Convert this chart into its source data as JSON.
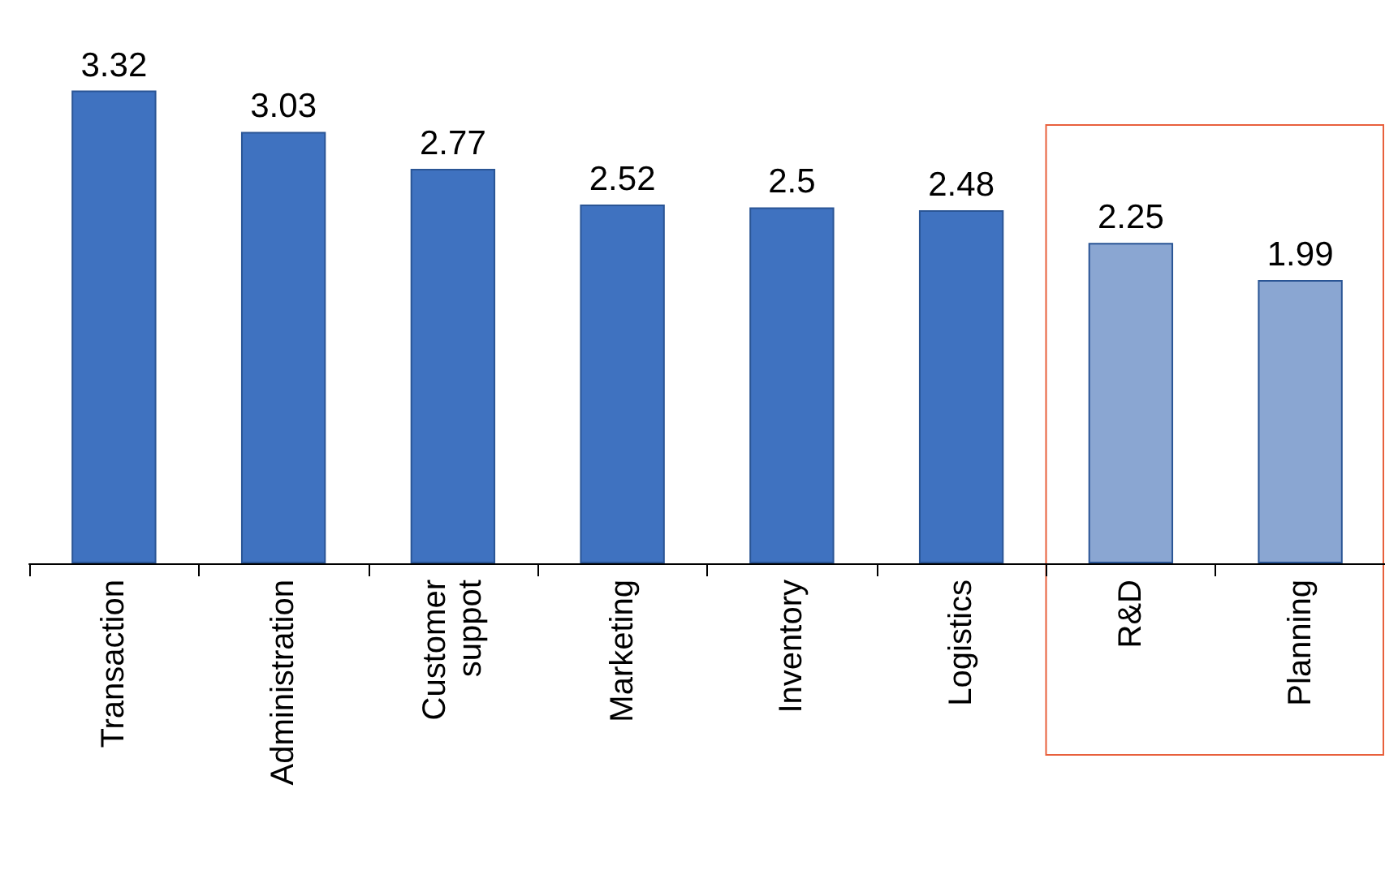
{
  "chart_data": {
    "type": "bar",
    "categories": [
      "Transaction",
      "Administration",
      "Customer\nsuppot",
      "Marketing",
      "Inventory",
      "Logistics",
      "R&D",
      "Planning"
    ],
    "values": [
      3.32,
      3.03,
      2.77,
      2.52,
      2.5,
      2.48,
      2.25,
      1.99
    ],
    "colors": [
      "#3f72c0",
      "#3f72c0",
      "#3f72c0",
      "#3f72c0",
      "#3f72c0",
      "#3f72c0",
      "#8aa6d2",
      "#8aa6d2"
    ],
    "data_labels": true
  }
}
